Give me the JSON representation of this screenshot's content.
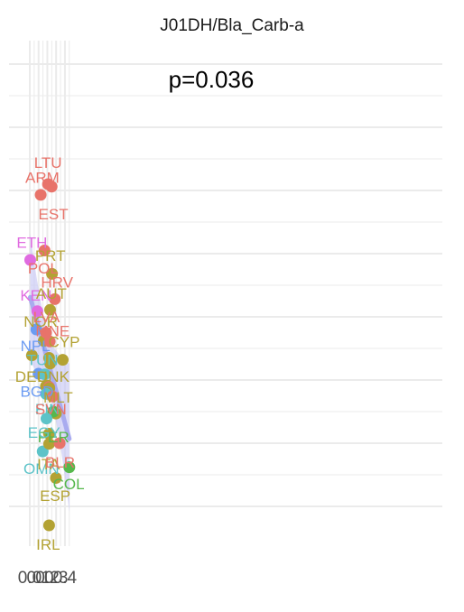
{
  "chart_data": {
    "type": "scatter",
    "title": "J01DH/Bla_Carb-a",
    "annotation": "p=0.036",
    "xlim": [
      0.0,
      0.47
    ],
    "ylim": [
      0.0,
      9.0
    ],
    "x_ticks": [
      "0.0",
      "0.1",
      "0.2",
      "0.3",
      "0.4"
    ],
    "x_tick_values": [
      0.0,
      0.1,
      0.2,
      0.3,
      0.4
    ],
    "grid": true,
    "legend": "none",
    "colors": {
      "red": "#e8736a",
      "olive": "#b3a233",
      "green": "#56b84c",
      "teal": "#5cc3c8",
      "blue": "#6b9bf2",
      "magenta": "#e06be0",
      "band": "#c8c8f4",
      "line": "#a9abef",
      "grid": "#ebebeb"
    },
    "regression": {
      "x0": 0.005,
      "y0": 3.81,
      "x1": 0.45,
      "y1": 1.57,
      "band_upper_left": 4.82,
      "band_lower_left": 2.8,
      "band_upper_right": 2.76,
      "band_lower_right": 0.41
    },
    "points": [
      {
        "label": "ETH",
        "x": 0.005,
        "y": 4.4,
        "color": "magenta",
        "lx": 0.025,
        "ly": 4.68
      },
      {
        "label": "KEN",
        "x": 0.086,
        "y": 3.59,
        "color": "magenta",
        "lx": 0.07,
        "ly": 3.84
      },
      {
        "label": "NPL",
        "x": 0.075,
        "y": 3.3,
        "color": "blue",
        "lx": 0.063,
        "ly": 3.04
      },
      {
        "label": "BGD",
        "x": 0.1,
        "y": 2.6,
        "color": "blue",
        "lx": 0.082,
        "ly": 2.32
      },
      {
        "label": "DEU",
        "x": 0.024,
        "y": 2.89,
        "color": "olive",
        "lx": 0.018,
        "ly": 2.56
      },
      {
        "label": "NOR",
        "x": 0.159,
        "y": 3.12,
        "color": "olive",
        "lx": 0.125,
        "ly": 3.43
      },
      {
        "label": "TUN",
        "x": 0.17,
        "y": 2.59,
        "color": "teal",
        "lx": 0.145,
        "ly": 2.82
      },
      {
        "label": "ARM",
        "x": 0.124,
        "y": 5.43,
        "color": "red",
        "lx": 0.143,
        "ly": 5.71
      },
      {
        "label": "LTU",
        "x": 0.207,
        "y": 5.6,
        "color": "red",
        "lx": 0.207,
        "ly": 5.94
      },
      {
        "label": "EST",
        "x": 0.249,
        "y": 5.56,
        "color": "red",
        "lx": 0.268,
        "ly": 5.13
      },
      {
        "label": "POL",
        "x": 0.168,
        "y": 4.55,
        "color": "red",
        "lx": 0.153,
        "ly": 4.27
      },
      {
        "label": "PRT",
        "x": 0.253,
        "y": 4.18,
        "color": "olive",
        "lx": 0.233,
        "ly": 4.47
      },
      {
        "label": "HRV",
        "x": 0.285,
        "y": 3.78,
        "color": "red",
        "lx": 0.31,
        "ly": 4.05
      },
      {
        "label": "AUT",
        "x": 0.231,
        "y": 3.61,
        "color": "olive",
        "lx": 0.246,
        "ly": 3.87
      },
      {
        "label": "LVA",
        "x": 0.185,
        "y": 3.25,
        "color": "red",
        "lx": 0.189,
        "ly": 3.5
      },
      {
        "label": "MNE",
        "x": 0.227,
        "y": 3.11,
        "color": "red",
        "lx": 0.26,
        "ly": 3.28
      },
      {
        "label": "CYP",
        "x": 0.375,
        "y": 2.82,
        "color": "olive",
        "lx": 0.39,
        "ly": 3.11
      },
      {
        "label": "DNK",
        "x": 0.232,
        "y": 2.76,
        "color": "olive",
        "lx": 0.267,
        "ly": 2.56
      },
      {
        "label": "MLT",
        "x": 0.297,
        "y": 1.97,
        "color": "olive",
        "lx": 0.323,
        "ly": 2.23
      },
      {
        "label": "FIN",
        "x": 0.185,
        "y": 2.28,
        "color": "teal",
        "lx": 0.201,
        "ly": 2.04
      },
      {
        "label": "SVN",
        "x": 0.259,
        "y": 2.24,
        "color": "red",
        "lx": 0.24,
        "ly": 2.04
      },
      {
        "label": "PER",
        "x": 0.268,
        "y": 2.0,
        "color": "green",
        "lx": 0.27,
        "ly": 1.6
      },
      {
        "label": "EGY",
        "x": 0.19,
        "y": 1.89,
        "color": "teal",
        "lx": 0.162,
        "ly": 1.67
      },
      {
        "label": "OMN",
        "x": 0.147,
        "y": 1.37,
        "color": "teal",
        "lx": 0.132,
        "ly": 1.1
      },
      {
        "label": "ITA",
        "x": 0.22,
        "y": 1.49,
        "color": "olive",
        "lx": 0.213,
        "ly": 1.17
      },
      {
        "label": "BLR",
        "x": 0.34,
        "y": 1.5,
        "color": "red",
        "lx": 0.344,
        "ly": 1.2
      },
      {
        "label": "COL",
        "x": 0.45,
        "y": 1.12,
        "color": "green",
        "lx": 0.443,
        "ly": 0.86
      },
      {
        "label": "ESP",
        "x": 0.297,
        "y": 0.95,
        "color": "olive",
        "lx": 0.289,
        "ly": 0.67
      },
      {
        "label": "IRL",
        "x": 0.22,
        "y": 0.2,
        "color": "olive",
        "lx": 0.209,
        "ly": -0.1
      }
    ],
    "unlabeled_points": [
      {
        "x": 0.22,
        "y": 2.85,
        "color": "olive"
      },
      {
        "x": 0.183,
        "y": 2.4,
        "color": "olive"
      },
      {
        "x": 0.2,
        "y": 2.41,
        "color": "olive"
      },
      {
        "x": 0.22,
        "y": 2.39,
        "color": "red"
      },
      {
        "x": 0.222,
        "y": 2.37,
        "color": "olive"
      },
      {
        "x": 0.22,
        "y": 1.65,
        "color": "olive"
      }
    ]
  }
}
